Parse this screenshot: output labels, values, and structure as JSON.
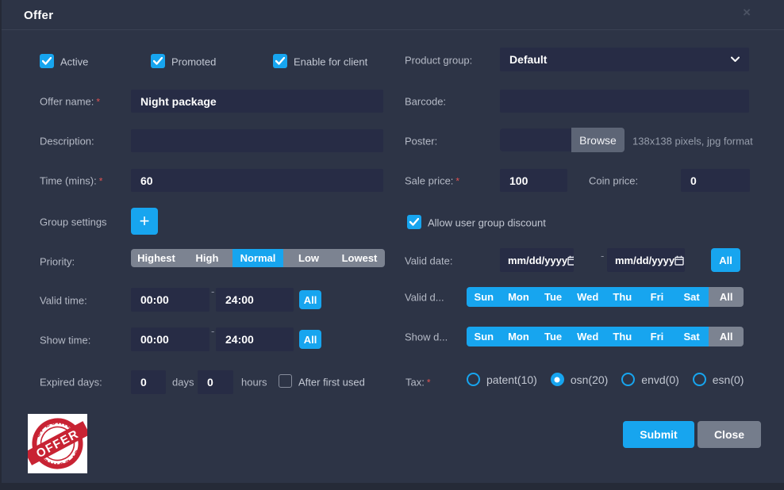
{
  "modal": {
    "title": "Offer",
    "close_glyph": "×"
  },
  "checkbox_row": {
    "active": "Active",
    "promoted": "Promoted",
    "enable_for_client": "Enable for client"
  },
  "fields": {
    "product_group": {
      "label": "Product group:",
      "value": "Default"
    },
    "offer_name": {
      "label": "Offer name:",
      "required": "*",
      "value": "Night package"
    },
    "barcode": {
      "label": "Barcode:",
      "value": ""
    },
    "description": {
      "label": "Description:",
      "value": ""
    },
    "poster": {
      "label": "Poster:",
      "value": "",
      "browse": "Browse",
      "hint": "138x138 pixels, jpg format"
    },
    "time_mins": {
      "label": "Time (mins):",
      "required": "*",
      "value": "60"
    },
    "sale_price": {
      "label": "Sale price:",
      "required": "*",
      "value": "100"
    },
    "coin_price": {
      "label": "Coin price:",
      "value": "0"
    },
    "group_settings": {
      "label": "Group settings",
      "add": "+"
    },
    "allow_discount": {
      "label": "Allow user group discount"
    },
    "priority": {
      "label": "Priority:",
      "options": [
        "Highest",
        "High",
        "Normal",
        "Low",
        "Lowest"
      ],
      "selected": "Normal"
    },
    "valid_date": {
      "label": "Valid date:",
      "from": "mm/dd/yyyy",
      "to": "mm/dd/yyyy",
      "separator": "-",
      "all": "All"
    },
    "valid_time": {
      "label": "Valid time:",
      "from": "00:00",
      "to": "24:00",
      "separator": "-",
      "all": "All"
    },
    "valid_days": {
      "label": "Valid d...",
      "days": [
        "Sun",
        "Mon",
        "Tue",
        "Wed",
        "Thu",
        "Fri",
        "Sat"
      ],
      "all": "All"
    },
    "show_time": {
      "label": "Show time:",
      "from": "00:00",
      "to": "24:00",
      "separator": "-",
      "all": "All"
    },
    "show_days": {
      "label": "Show d...",
      "days": [
        "Sun",
        "Mon",
        "Tue",
        "Wed",
        "Thu",
        "Fri",
        "Sat"
      ],
      "all": "All"
    },
    "expired": {
      "label": "Expired days:",
      "days_value": "0",
      "days_unit": "days",
      "hours_value": "0",
      "hours_unit": "hours",
      "after_first_used": "After first used"
    },
    "tax": {
      "label": "Tax:",
      "required": "*",
      "options": [
        {
          "label": "patent(10)",
          "selected": false
        },
        {
          "label": "osn(20)",
          "selected": true
        },
        {
          "label": "envd(0)",
          "selected": false
        },
        {
          "label": "esn(0)",
          "selected": false
        }
      ]
    }
  },
  "stamp": {
    "top_text": "SPECIAL",
    "banner_text": "OFFER",
    "bottom_text": "SPECIAL"
  },
  "buttons": {
    "submit": "Submit",
    "close": "Close"
  },
  "colors": {
    "accent": "#17a5ef",
    "modal_bg": "#2d3446",
    "input_bg": "#272c45",
    "segment_gray": "#7c8391",
    "button_gray": "#757d8c",
    "stamp_red": "#c82333",
    "required_red": "#e05252"
  }
}
